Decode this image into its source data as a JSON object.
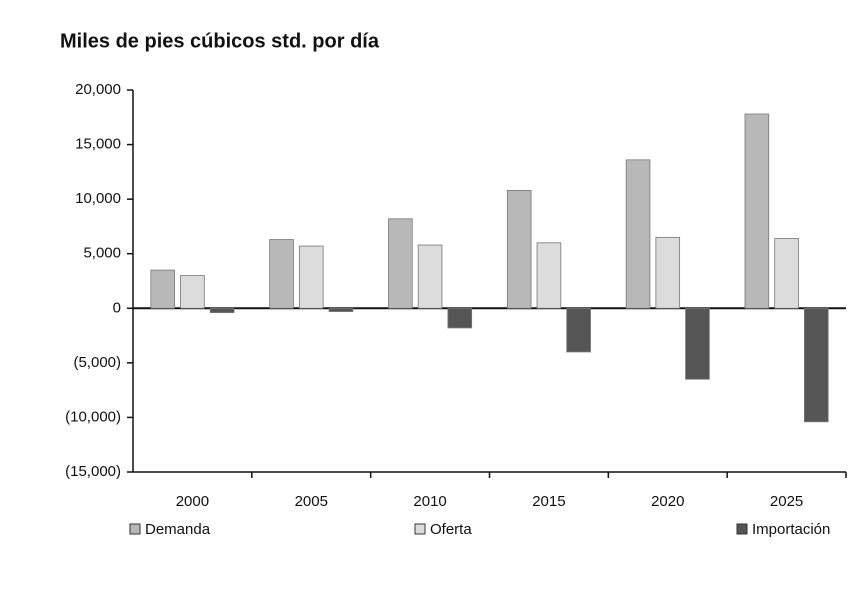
{
  "chart_data": {
    "type": "bar",
    "title": "Miles de pies cúbicos std. por día",
    "categories": [
      "2000",
      "2005",
      "2010",
      "2015",
      "2020",
      "2025"
    ],
    "series": [
      {
        "name": "Demanda",
        "color": "#b8b8b8",
        "values": [
          3500,
          6300,
          8200,
          10800,
          13600,
          17800
        ]
      },
      {
        "name": "Oferta",
        "color": "#dcdcdc",
        "values": [
          3000,
          5700,
          5800,
          6000,
          6500,
          6400
        ]
      },
      {
        "name": "Importación",
        "color": "#555555",
        "values": [
          -400,
          -300,
          -1800,
          -4000,
          -6500,
          -10400
        ]
      }
    ],
    "ylim": [
      -15000,
      20000
    ],
    "yticks": [
      {
        "value": -15000,
        "label": "(15,000)"
      },
      {
        "value": -10000,
        "label": "(10,000)"
      },
      {
        "value": -5000,
        "label": "(5,000)"
      },
      0,
      {
        "value": 5000,
        "label": "5,000"
      },
      {
        "value": 10000,
        "label": "10,000"
      },
      {
        "value": 15000,
        "label": "15,000"
      },
      {
        "value": 20000,
        "label": "20,000"
      }
    ],
    "grid": false,
    "legend": "bottom"
  }
}
